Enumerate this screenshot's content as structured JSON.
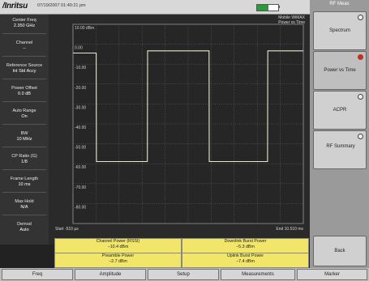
{
  "header": {
    "logo": "/Inritsu",
    "timestamp": "07/19/2007 01:40:21 pm",
    "mode_line1": "Mobile WiMAX",
    "mode_line2": "Power vs Time"
  },
  "parameters": [
    {
      "label": "Center Freq",
      "value": "2.350 GHz"
    },
    {
      "label": "Channel",
      "value": "--"
    },
    {
      "label": "Reference Source",
      "value": "Int Std Accy"
    },
    {
      "label": "Power Offset",
      "value": "0.0 dB"
    },
    {
      "label": "Auto Range",
      "value": "On"
    },
    {
      "label": "BW",
      "value": "10 MHz"
    },
    {
      "label": "CP Ratio (G)",
      "value": "1/8"
    },
    {
      "label": "Frame Length",
      "value": "10 ms"
    },
    {
      "label": "Max Hold",
      "value": "N/A"
    },
    {
      "label": "Demod",
      "value": "Auto"
    }
  ],
  "graph": {
    "start_label": "Start -510 µs",
    "end_label": "End 10.510 ms",
    "y_ticks": [
      "10.00 dBm",
      "0.00",
      "-10.00",
      "-20.00",
      "-30.00",
      "-40.00",
      "-50.00",
      "-60.00",
      "-70.00",
      "-80.00"
    ]
  },
  "chart_data": {
    "type": "line",
    "ylabel": "",
    "y_ticks": [
      "10.00 dBm",
      "0.00",
      "-10.00",
      "-20.00",
      "-30.00",
      "-40.00",
      "-50.00",
      "-60.00",
      "-70.00",
      "-80.00"
    ],
    "ylim": [
      -80,
      10
    ],
    "xlim": [
      -0.51,
      10.51
    ],
    "x_unit": "ms",
    "series": [
      {
        "x": [
          -0.51,
          0.6,
          0.61,
          3.05,
          3.06,
          6.0,
          6.01,
          8.8,
          8.81,
          10.51
        ],
        "y": [
          -3,
          -3,
          -52,
          -52,
          -2,
          -2,
          -52,
          -52,
          -2,
          -2
        ]
      }
    ]
  },
  "measurements": [
    {
      "label": "Channel Power (RSSI)",
      "value": "−10.4 dBm"
    },
    {
      "label": "Downlink Burst Power",
      "value": "−5.3 dBm"
    },
    {
      "label": "Preamble Power",
      "value": "−2.7 dBm"
    },
    {
      "label": "Uplink Burst Power",
      "value": "−7.4 dBm"
    }
  ],
  "softkeys": {
    "title": "RF Meas",
    "items": [
      {
        "label": "Spectrum"
      },
      {
        "label": "Power vs Time"
      },
      {
        "label": "ACPR"
      },
      {
        "label": "RF Summary"
      }
    ],
    "back_label": "Back"
  },
  "menu": [
    "Freq",
    "Amplitude",
    "Setup",
    "Measurements",
    "Marker"
  ],
  "colors": {
    "trace": "#e8e8d0",
    "grid": "#6a6a6a",
    "highlight": "#f2e66a",
    "active_indicator": "#c0302a",
    "battery": "#2c9a3a"
  },
  "battery_fraction": 0.55
}
